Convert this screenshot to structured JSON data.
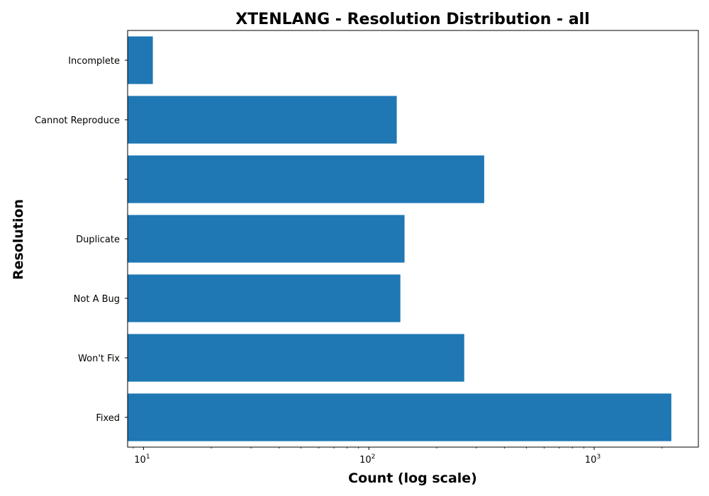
{
  "chart_data": {
    "type": "bar",
    "orientation": "horizontal",
    "title": "XTENLANG - Resolution Distribution - all",
    "xlabel": "Count (log scale)",
    "ylabel": "Resolution",
    "x_scale": "log",
    "xlim": [
      8.5,
      2900
    ],
    "x_ticks": [
      {
        "value": 10,
        "base": "10",
        "exponent": "1"
      },
      {
        "value": 100,
        "base": "10",
        "exponent": "2"
      },
      {
        "value": 1000,
        "base": "10",
        "exponent": "3"
      }
    ],
    "categories": [
      "Fixed",
      "Won't Fix",
      "Not A Bug",
      "Duplicate",
      "",
      "Cannot Reproduce",
      "Incomplete"
    ],
    "values": [
      2200,
      265,
      138,
      144,
      325,
      133,
      11
    ],
    "bar_color": "#1f77b4",
    "grid": false,
    "legend": false
  }
}
